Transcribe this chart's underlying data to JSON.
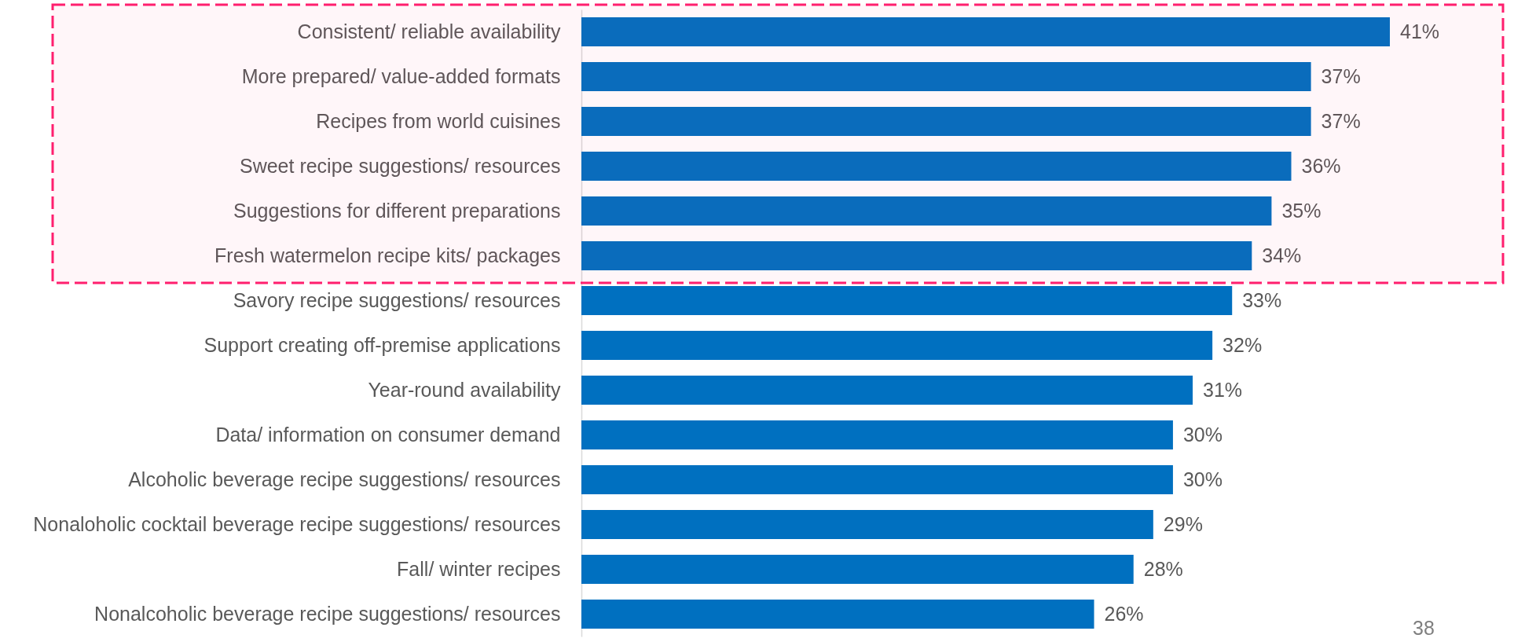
{
  "chart_data": {
    "type": "bar",
    "orientation": "horizontal",
    "color": "#0070c0",
    "categories": [
      "Consistent/ reliable availability",
      "More prepared/ value-added formats",
      "Recipes from world cuisines",
      "Sweet recipe suggestions/ resources",
      "Suggestions for different preparations",
      "Fresh watermelon recipe kits/ packages",
      "Savory recipe suggestions/ resources",
      "Support creating off-premise applications",
      "Year-round availability",
      "Data/ information on consumer demand",
      "Alcoholic beverage recipe suggestions/ resources",
      "Nonaloholic cocktail beverage recipe suggestions/ resources",
      "Fall/ winter recipes",
      "Nonalcoholic beverage recipe suggestions/ resources"
    ],
    "values": [
      41,
      37,
      37,
      36,
      35,
      34,
      33,
      32,
      31,
      30,
      30,
      29,
      28,
      26
    ],
    "value_labels": [
      "41%",
      "37%",
      "37%",
      "36%",
      "35%",
      "34%",
      "33%",
      "32%",
      "31%",
      "30%",
      "30%",
      "29%",
      "28%",
      "26%"
    ],
    "bands": [
      {
        "axis": "y",
        "from": "Consistent/ reliable availability",
        "to": "Fresh watermelon recipe kits/ packages",
        "color": "#ff1f6e"
      }
    ],
    "annotations": [
      "38"
    ]
  }
}
